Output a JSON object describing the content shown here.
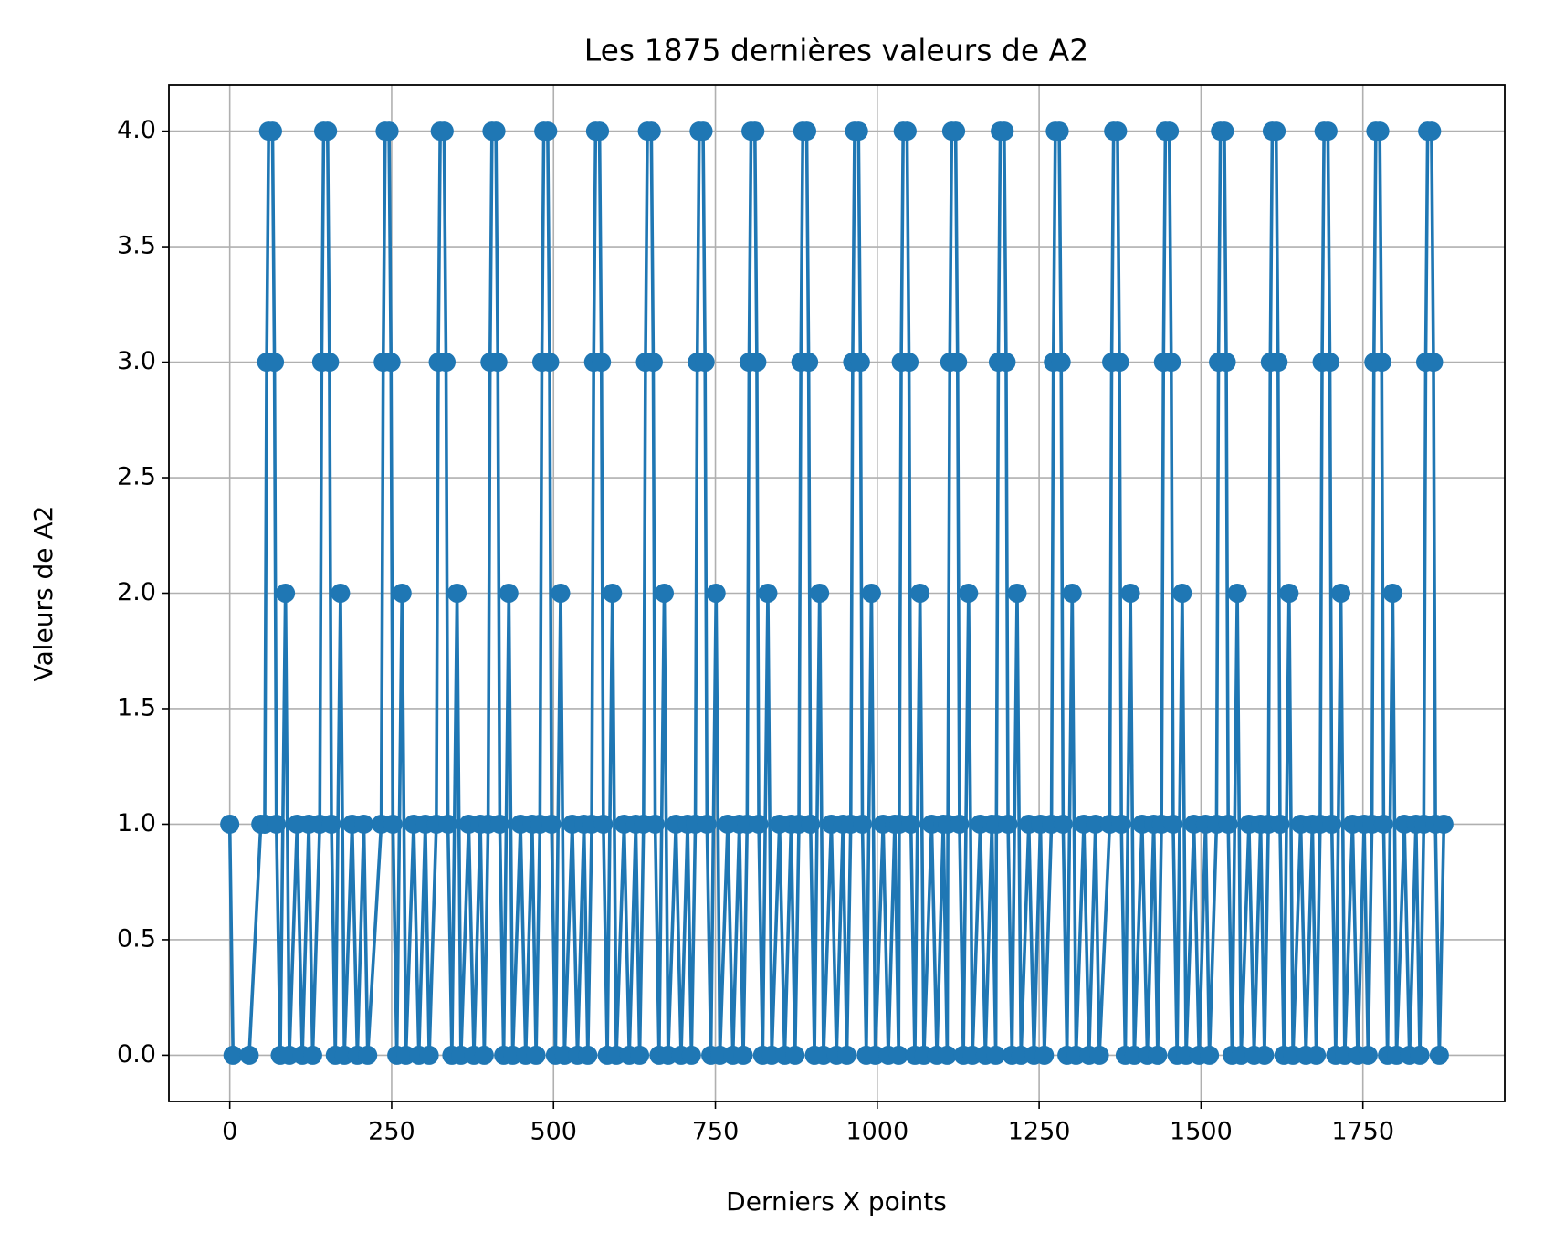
{
  "chart_data": {
    "type": "line",
    "title": "Les 1875 dernières valeurs de A2",
    "xlabel": "Derniers X points",
    "ylabel": "Valeurs de A2",
    "color": "#1f77b4",
    "marker": "circle",
    "grid": true,
    "xlim": [
      -94,
      1969
    ],
    "ylim": [
      -0.2,
      4.2
    ],
    "xticks": [
      0,
      250,
      500,
      750,
      1000,
      1250,
      1500,
      1750
    ],
    "yticks": [
      {
        "value": 0,
        "label": "0.0"
      },
      0.5,
      {
        "value": 1,
        "label": "1.0"
      },
      1.5,
      {
        "value": 2,
        "label": "2.0"
      },
      2.5,
      {
        "value": 3,
        "label": "3.0"
      },
      3.5,
      {
        "value": 4,
        "label": "4.0"
      }
    ],
    "x": [
      0,
      5,
      30,
      48,
      54,
      57,
      60,
      66,
      69,
      72,
      78,
      86,
      92,
      104,
      112,
      122,
      128,
      139,
      142,
      145,
      151,
      154,
      157,
      163,
      171,
      177,
      189,
      197,
      207,
      213,
      234,
      237,
      240,
      246,
      249,
      252,
      258,
      266,
      272,
      284,
      292,
      302,
      308,
      319,
      322,
      325,
      331,
      334,
      337,
      343,
      351,
      357,
      369,
      377,
      387,
      393,
      399,
      402,
      405,
      411,
      414,
      417,
      423,
      431,
      437,
      449,
      457,
      467,
      473,
      479,
      482,
      485,
      491,
      494,
      497,
      503,
      511,
      517,
      529,
      537,
      547,
      553,
      559,
      562,
      565,
      571,
      574,
      577,
      583,
      591,
      597,
      609,
      617,
      627,
      633,
      639,
      642,
      645,
      651,
      654,
      657,
      663,
      671,
      677,
      689,
      697,
      707,
      713,
      719,
      722,
      725,
      731,
      734,
      737,
      743,
      751,
      757,
      769,
      777,
      787,
      793,
      799,
      802,
      805,
      811,
      814,
      817,
      823,
      831,
      837,
      849,
      857,
      867,
      873,
      879,
      882,
      885,
      891,
      894,
      897,
      903,
      911,
      917,
      929,
      937,
      947,
      953,
      959,
      962,
      965,
      971,
      974,
      977,
      983,
      991,
      997,
      1009,
      1017,
      1027,
      1033,
      1034,
      1037,
      1040,
      1046,
      1049,
      1052,
      1058,
      1066,
      1072,
      1084,
      1092,
      1102,
      1108,
      1109,
      1112,
      1115,
      1121,
      1124,
      1127,
      1133,
      1141,
      1147,
      1159,
      1167,
      1177,
      1183,
      1184,
      1187,
      1190,
      1196,
      1199,
      1202,
      1208,
      1216,
      1222,
      1234,
      1242,
      1252,
      1258,
      1269,
      1272,
      1275,
      1281,
      1284,
      1287,
      1293,
      1301,
      1307,
      1319,
      1327,
      1337,
      1343,
      1359,
      1362,
      1365,
      1371,
      1374,
      1377,
      1383,
      1391,
      1397,
      1409,
      1417,
      1427,
      1433,
      1439,
      1442,
      1445,
      1451,
      1454,
      1457,
      1463,
      1471,
      1477,
      1489,
      1497,
      1507,
      1513,
      1524,
      1527,
      1530,
      1536,
      1539,
      1542,
      1548,
      1556,
      1562,
      1574,
      1582,
      1592,
      1598,
      1604,
      1607,
      1610,
      1616,
      1619,
      1622,
      1628,
      1636,
      1642,
      1654,
      1662,
      1672,
      1678,
      1684,
      1687,
      1690,
      1696,
      1699,
      1702,
      1708,
      1716,
      1722,
      1734,
      1742,
      1752,
      1758,
      1764,
      1767,
      1770,
      1776,
      1779,
      1782,
      1788,
      1796,
      1802,
      1814,
      1822,
      1832,
      1838,
      1844,
      1847,
      1850,
      1856,
      1859,
      1862,
      1868,
      1875
    ],
    "values": [
      1,
      0,
      0,
      1,
      1,
      3,
      4,
      4,
      3,
      1,
      0,
      2,
      0,
      1,
      0,
      1,
      0,
      1,
      3,
      4,
      4,
      3,
      1,
      0,
      2,
      0,
      1,
      0,
      1,
      0,
      1,
      3,
      4,
      4,
      3,
      1,
      0,
      2,
      0,
      1,
      0,
      1,
      0,
      1,
      3,
      4,
      4,
      3,
      1,
      0,
      2,
      0,
      1,
      0,
      1,
      0,
      1,
      3,
      4,
      4,
      3,
      1,
      0,
      2,
      0,
      1,
      0,
      1,
      0,
      1,
      3,
      4,
      4,
      3,
      1,
      0,
      2,
      0,
      1,
      0,
      1,
      0,
      1,
      3,
      4,
      4,
      3,
      1,
      0,
      2,
      0,
      1,
      0,
      1,
      0,
      1,
      3,
      4,
      4,
      3,
      1,
      0,
      2,
      0,
      1,
      0,
      1,
      0,
      1,
      3,
      4,
      4,
      3,
      1,
      0,
      2,
      0,
      1,
      0,
      1,
      0,
      1,
      3,
      4,
      4,
      3,
      1,
      0,
      2,
      0,
      1,
      0,
      1,
      0,
      1,
      3,
      4,
      4,
      3,
      1,
      0,
      2,
      0,
      1,
      0,
      1,
      0,
      1,
      3,
      4,
      4,
      3,
      1,
      0,
      2,
      0,
      1,
      0,
      1,
      0,
      1,
      3,
      4,
      4,
      3,
      1,
      0,
      2,
      0,
      1,
      0,
      1,
      0,
      1,
      3,
      4,
      4,
      3,
      1,
      0,
      2,
      0,
      1,
      0,
      1,
      0,
      1,
      3,
      4,
      4,
      3,
      1,
      0,
      2,
      0,
      1,
      0,
      1,
      0,
      1,
      3,
      4,
      4,
      3,
      1,
      0,
      2,
      0,
      1,
      0,
      1,
      0,
      1,
      3,
      4,
      4,
      3,
      1,
      0,
      2,
      0,
      1,
      0,
      1,
      0,
      1,
      3,
      4,
      4,
      3,
      1,
      0,
      2,
      0,
      1,
      0,
      1,
      0,
      1,
      3,
      4,
      4,
      3,
      1,
      0,
      2,
      0,
      1,
      0,
      1,
      0,
      1,
      3,
      4,
      4,
      3,
      1,
      0,
      2,
      0,
      1,
      0,
      1,
      0,
      1,
      3,
      4,
      4,
      3,
      1,
      0,
      2,
      0,
      1,
      0,
      1,
      0,
      1,
      3,
      4,
      4,
      3,
      1,
      0,
      2,
      0,
      1,
      0,
      1,
      0,
      1,
      3,
      4,
      4,
      3,
      1,
      0,
      1
    ]
  }
}
